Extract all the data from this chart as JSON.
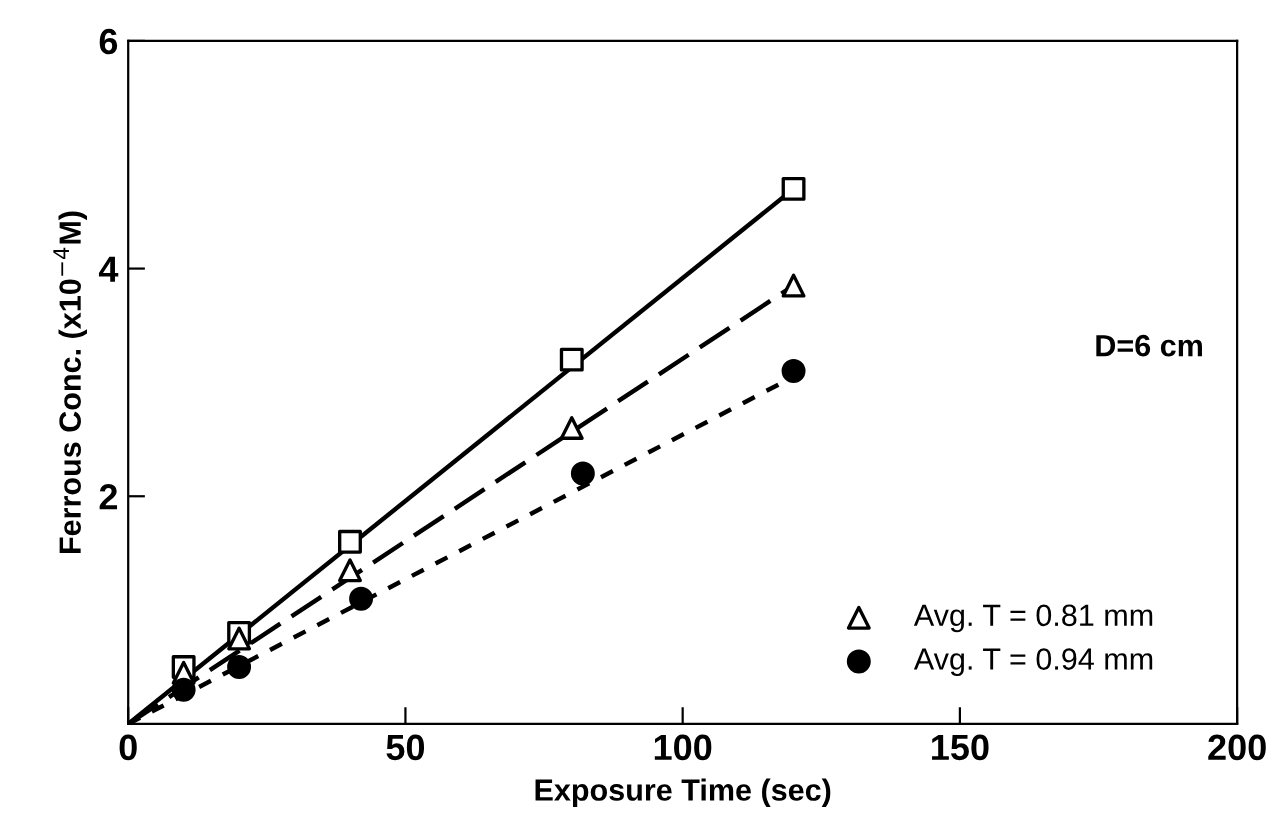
{
  "chart_data": {
    "type": "scatter",
    "xlabel": "Exposure Time (sec)",
    "ylabel": "Ferrous Conc. (x10$^{−4}$M)",
    "xlim": [
      0,
      200
    ],
    "ylim": [
      0,
      6
    ],
    "xticks": [
      0,
      50,
      100,
      150,
      200
    ],
    "yticks": [
      2,
      4,
      6
    ],
    "grid": false,
    "legend": "bottom right",
    "annotations": [
      "D=6 cm"
    ],
    "series": [
      {
        "color": "#000000",
        "marker": "square",
        "x": [
          10,
          20,
          40,
          80,
          120
        ],
        "values": [
          0.5,
          0.8,
          1.6,
          3.2,
          4.7
        ]
      },
      {
        "name": "Avg. T = 0.81 mm",
        "color": "#000000",
        "marker": "triangle",
        "x": [
          10,
          20,
          40,
          80,
          120
        ],
        "values": [
          0.45,
          0.75,
          1.35,
          2.6,
          3.85
        ]
      },
      {
        "name": "Avg. T = 0.94 mm",
        "color": "#000000",
        "marker": "circle",
        "x": [
          10,
          20,
          42,
          82,
          120
        ],
        "values": [
          0.3,
          0.5,
          1.1,
          2.2,
          3.1
        ]
      },
      {
        "type": "line",
        "color": "#000000",
        "line_style": "solid",
        "x": [
          0,
          120
        ],
        "values": [
          0,
          4.7
        ]
      },
      {
        "type": "line",
        "color": "#000000",
        "line_style": "dashed",
        "x": [
          0,
          120
        ],
        "values": [
          0,
          3.85
        ]
      },
      {
        "type": "line",
        "color": "#000000",
        "line_style": "dotted",
        "x": [
          0,
          120
        ],
        "values": [
          0,
          3.05
        ]
      }
    ]
  }
}
